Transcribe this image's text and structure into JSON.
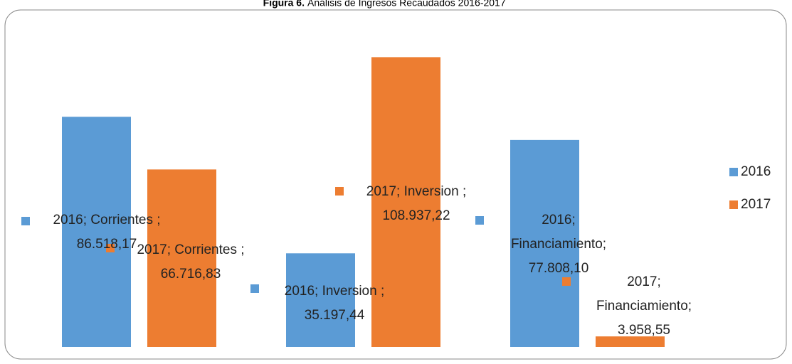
{
  "chart_data": {
    "type": "bar",
    "figure_label": "Figura 6.",
    "title": "Análisis de Ingresos Recaudados 2016-2017",
    "categories": [
      "Corrientes",
      "Inversion",
      "Financiamiento"
    ],
    "series": [
      {
        "name": "2016",
        "color": "#5b9bd5",
        "values": [
          86518.17,
          35197.44,
          77808.1
        ],
        "value_labels": [
          "2016; Corrientes ; 86.518,17",
          "2016; Inversion ; 35.197,44",
          "2016; Financiamiento; 77.808,10"
        ]
      },
      {
        "name": "2017",
        "color": "#ed7d31",
        "values": [
          66716.83,
          108937.22,
          3958.55
        ],
        "value_labels": [
          "2017; Corrientes ; 66.716,83",
          "2017; Inversion ; 108.937,22",
          "2017; Financiamiento; 3.958,55"
        ]
      }
    ],
    "ylim": [
      0,
      120000
    ],
    "legend": "right"
  }
}
